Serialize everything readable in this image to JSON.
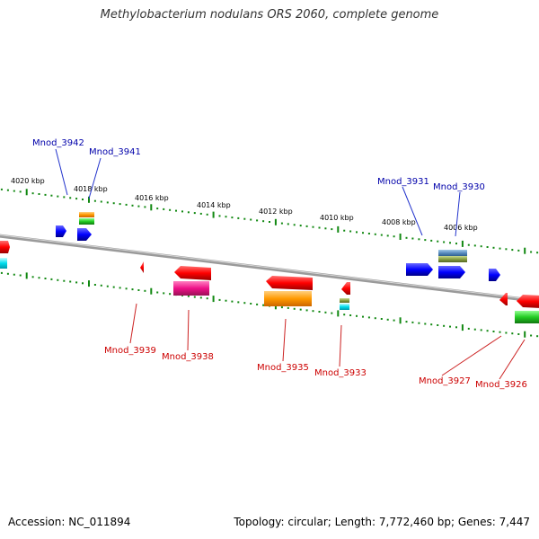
{
  "title": "Methylobacterium nodulans ORS 2060, complete genome",
  "footer": {
    "accession": "Accession: NC_011894",
    "topology": "Topology: circular; Length: 7,772,460 bp; Genes: 7,447"
  },
  "scale_labels": [
    "4020 kbp",
    "4018 kbp",
    "4016 kbp",
    "4014 kbp",
    "4012 kbp",
    "4010 kbp",
    "4008 kbp",
    "4006 kbp"
  ],
  "gene_labels_forward": [
    "Mnod_3942",
    "Mnod_3941",
    "Mnod_3931",
    "Mnod_3930"
  ],
  "gene_labels_reverse": [
    "Mnod_3939",
    "Mnod_3938",
    "Mnod_3935",
    "Mnod_3933",
    "Mnod_3927",
    "Mnod_3926"
  ],
  "colors": {
    "forward_label": "#0000aa",
    "reverse_label": "#cc0000",
    "backbone": "#888888",
    "ticks": "#118811",
    "gene_forward": "#0000ee",
    "gene_reverse": "#ee0000"
  }
}
